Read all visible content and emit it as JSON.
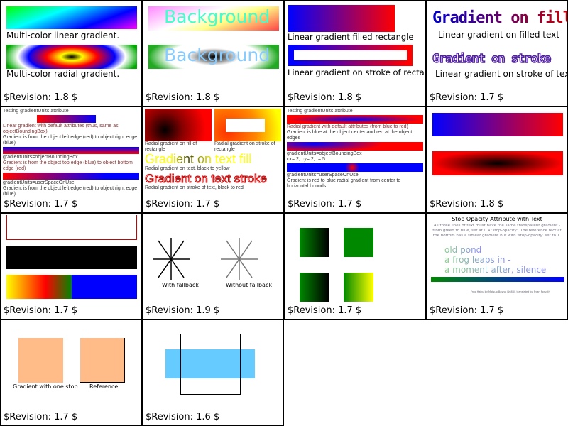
{
  "revision_prefix": "$Revision: ",
  "cells": [
    {
      "revision": "$Revision: 1.8 $",
      "labels": [
        "Multi-color linear gradient.",
        "Multi-color radial gradient."
      ]
    },
    {
      "revision": "$Revision: 1.8 $",
      "labels": [
        "Background",
        "Background"
      ]
    },
    {
      "revision": "$Revision: 1.8 $",
      "labels": [
        "Linear gradient filled rectangle",
        "Linear gradient on stroke of rectangle"
      ]
    },
    {
      "revision": "$Revision: 1.7 $",
      "labels": [
        "Gradient on fill",
        "Linear gradient on filled text",
        "Gradient on stroke",
        "Linear gradient on stroke of text"
      ]
    },
    {
      "revision": "$Revision: 1.7 $",
      "title": "Testing gradientUnits attribute",
      "labels": [
        "Linear gradient with default attributes (thus, same as objectBoundingBox)",
        "Gradient is from the object left edge (red) to object right edge (blue)",
        "gradientUnits=objectBoundingBox",
        "Gradient is from the object top edge (blue) to object bottom edge (red)",
        "gradientUnits=userSpaceOnUse",
        "Gradient is from the object left edge (red) to object right edge (blue)"
      ]
    },
    {
      "revision": "$Revision: 1.7 $",
      "labels": [
        "Radial gradient on fill of rectangle",
        "Radial gradient on stroke of rectangle",
        "Gradient on text fill",
        "Radial gradient on text, black to yellow",
        "Gradient on text stroke",
        "Radial gradient on stroke of text, black to red"
      ]
    },
    {
      "revision": "$Revision: 1.7 $",
      "title": "Testing gradientUnits attribute",
      "labels": [
        "Radial gradient with default attributes (from blue to red)",
        "Gradient is blue at the object center and red at the object edges",
        "gradientUnits=objectBoundingBox",
        "cx=.2, cy=.2, r=.5",
        "gradientUnits=userSpaceOnUse",
        "Gradient is red to blue radial gradient from center to horizontal bounds"
      ]
    },
    {
      "revision": "$Revision: 1.8 $"
    },
    {
      "revision": "$Revision: 1.7 $"
    },
    {
      "revision": "$Revision: 1.9 $",
      "labels": [
        "With fallback",
        "Without fallback"
      ]
    },
    {
      "revision": "$Revision: 1.7 $"
    },
    {
      "revision": "$Revision: 1.7 $",
      "title": "Stop Opacity Attribute with Text",
      "desc": [
        "All three lines of text must have the same transparent gradient -",
        "from green to blue, set at 0.4 'stop-opacity'. The reference rect at",
        "the bottom has a similar gradient but with 'stop-opacity' set to 1."
      ],
      "haiku": [
        "old pond",
        "a frog leaps in -",
        "a moment after, silence"
      ],
      "credit": "Frog Haiku by Matsuo Basho (1686), translated by Ryan Forsyth"
    },
    {
      "revision": "$Revision: 1.7 $",
      "labels": [
        "Gradient with one stop",
        "Reference"
      ]
    },
    {
      "revision": "$Revision: 1.6 $"
    }
  ]
}
